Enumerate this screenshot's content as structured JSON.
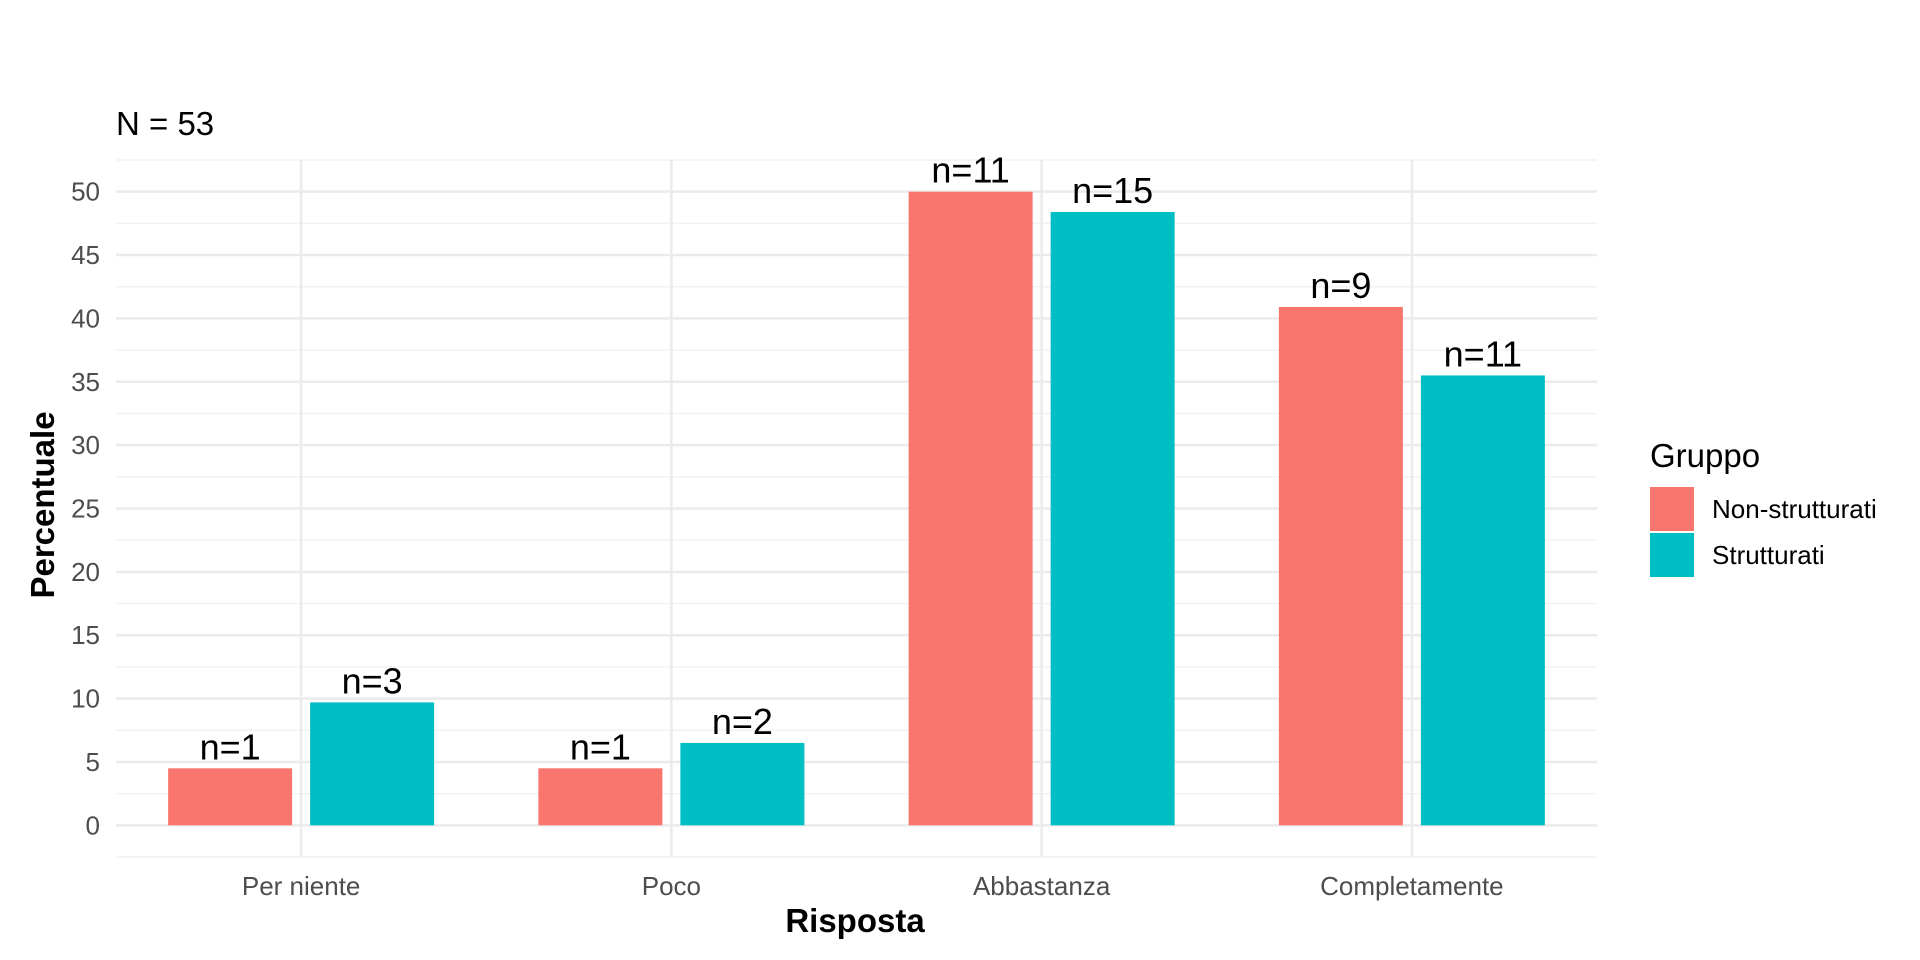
{
  "chart_data": {
    "type": "bar",
    "subtitle": "N = 53",
    "xlabel": "Risposta",
    "ylabel": "Percentuale",
    "categories": [
      "Per niente",
      "Poco",
      "Abbastanza",
      "Completamente"
    ],
    "series": [
      {
        "name": "Non-strutturati",
        "color": "#F8766D",
        "values": [
          4.5,
          4.5,
          50.0,
          40.9
        ],
        "labels": [
          "n=1",
          "n=1",
          "n=11",
          "n=9"
        ]
      },
      {
        "name": "Strutturati",
        "color": "#00BFC4",
        "values": [
          9.7,
          6.5,
          48.4,
          35.5
        ],
        "labels": [
          "n=3",
          "n=2",
          "n=15",
          "n=11"
        ]
      }
    ],
    "yticks": [
      "0",
      "5",
      "10",
      "15",
      "20",
      "25",
      "30",
      "35",
      "40",
      "45",
      "50"
    ],
    "ylim": [
      -2.5,
      52.5
    ],
    "grid": true,
    "legend": {
      "title": "Gruppo",
      "position": "right"
    }
  }
}
